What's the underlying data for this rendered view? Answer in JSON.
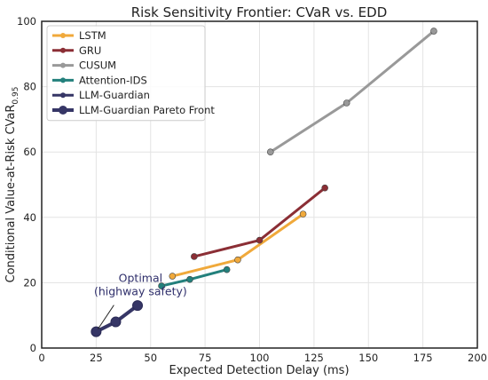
{
  "chart_data": {
    "type": "line",
    "title": "Risk Sensitivity Frontier: CVaR vs. EDD",
    "xlabel": "Expected Detection Delay (ms)",
    "ylabel_main": "Conditional Value-at-Risk CVaR",
    "ylabel_sub": "0.95",
    "xlim": [
      0,
      200
    ],
    "ylim": [
      0,
      100
    ],
    "xticks": [
      0,
      25,
      50,
      75,
      100,
      125,
      150,
      175,
      200
    ],
    "yticks": [
      0,
      20,
      40,
      60,
      80,
      100
    ],
    "grid": true,
    "legend_position": "top-left",
    "series": [
      {
        "name": "LSTM",
        "color": "#f0a93b",
        "marker": "small",
        "x": [
          60,
          90,
          120
        ],
        "y": [
          22,
          27,
          41
        ]
      },
      {
        "name": "GRU",
        "color": "#8b2e35",
        "marker": "small",
        "x": [
          70,
          100,
          130
        ],
        "y": [
          28,
          33,
          49
        ]
      },
      {
        "name": "CUSUM",
        "color": "#999999",
        "marker": "small",
        "x": [
          105,
          140,
          180
        ],
        "y": [
          60,
          75,
          97
        ]
      },
      {
        "name": "Attention-IDS",
        "color": "#23807c",
        "marker": "small",
        "x": [
          55,
          68,
          85
        ],
        "y": [
          19,
          21,
          24
        ]
      },
      {
        "name": "LLM-Guardian",
        "color": "#363666",
        "marker": "small",
        "x": [
          25,
          34,
          44
        ],
        "y": [
          5,
          8,
          13
        ]
      },
      {
        "name": "LLM-Guardian Pareto Front",
        "color": "#363666",
        "marker": "large",
        "x": [
          25,
          34,
          44
        ],
        "y": [
          5,
          8,
          13
        ]
      }
    ],
    "annotation": {
      "lines": [
        "Optimal",
        "(highway safety)"
      ],
      "target_x": 25,
      "target_y": 5
    }
  }
}
